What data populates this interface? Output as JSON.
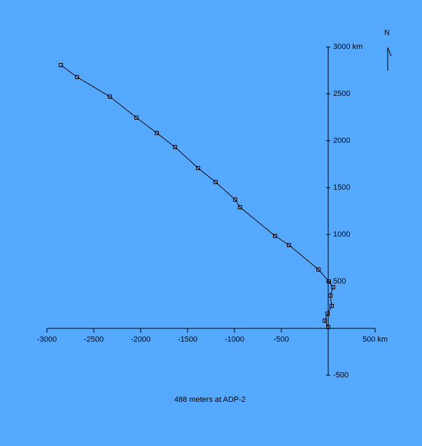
{
  "chart_data": {
    "type": "line",
    "title": "488 meters at ADP-2",
    "north_label": "N",
    "x": [
      0,
      -37,
      -7,
      37,
      22,
      52,
      7,
      -104,
      -418,
      -567,
      -940,
      -993,
      -1201,
      -1388,
      -1634,
      -1828,
      -2045,
      -2328,
      -2679,
      -2851
    ],
    "values": [
      15,
      82,
      157,
      239,
      351,
      440,
      500,
      627,
      888,
      985,
      1291,
      1373,
      1560,
      1709,
      1933,
      2082,
      2246,
      2470,
      2679,
      2806
    ],
    "color": "#000000",
    "xlim": [
      -3000,
      500
    ],
    "ylim": [
      -500,
      3000
    ],
    "xticks": [
      -3000,
      -2500,
      -2000,
      -1500,
      -1000,
      -500,
      {
        "value": 500,
        "label": "500 km"
      }
    ],
    "yticks": [
      -500,
      500,
      1000,
      1500,
      2000,
      2500,
      {
        "value": 3000,
        "label": "3000 km"
      }
    ]
  }
}
